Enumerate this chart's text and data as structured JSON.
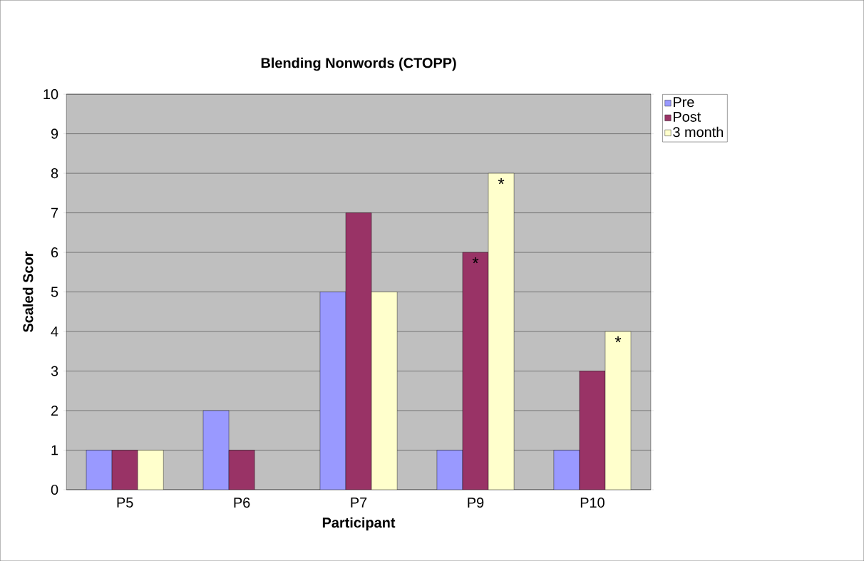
{
  "chart_data": {
    "type": "bar",
    "title": "Blending Nonwords (CTOPP)",
    "xlabel": "Participant",
    "ylabel": "Scaled Scor",
    "categories": [
      "P5",
      "P6",
      "P7",
      "P9",
      "P10"
    ],
    "series": [
      {
        "name": "Pre",
        "color": "#9999ff",
        "values": [
          1,
          2,
          5,
          1,
          1
        ]
      },
      {
        "name": "Post",
        "color": "#993366",
        "values": [
          1,
          1,
          7,
          6,
          3
        ],
        "value_labels": [
          null,
          null,
          null,
          "*",
          null
        ]
      },
      {
        "name": "3 month",
        "color": "#ffffcc",
        "values": [
          1,
          null,
          5,
          8,
          4
        ],
        "value_labels": [
          null,
          null,
          null,
          "*",
          "*"
        ]
      }
    ],
    "ylim": [
      0,
      10
    ],
    "yticks": [
      0,
      1,
      2,
      3,
      4,
      5,
      6,
      7,
      8,
      9,
      10
    ],
    "grid": "y",
    "legend": "right"
  }
}
